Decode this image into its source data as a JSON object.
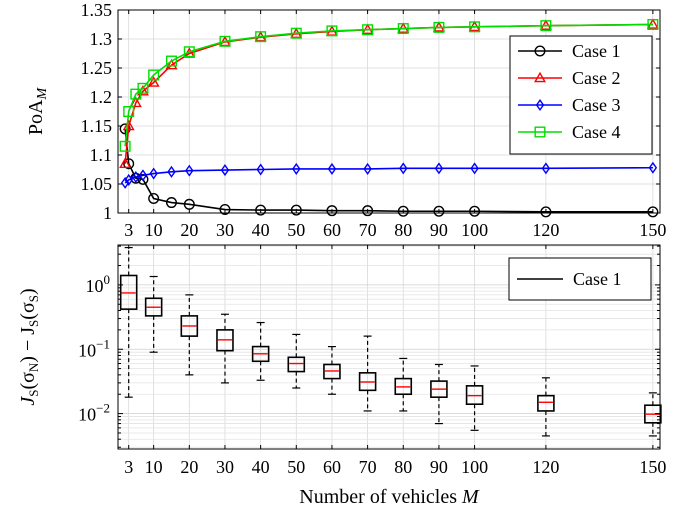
{
  "chart_data": [
    {
      "type": "line",
      "ylabel": "PoA_M",
      "ylabel_base": "PoA",
      "ylabel_sub": "M",
      "xlabel": "",
      "xlim": [
        0,
        152
      ],
      "ylim": [
        1.0,
        1.35
      ],
      "xticks": [
        3,
        10,
        20,
        30,
        40,
        50,
        60,
        70,
        80,
        90,
        100,
        120,
        150
      ],
      "yticks": [
        1,
        1.05,
        1.1,
        1.15,
        1.2,
        1.25,
        1.3,
        1.35
      ],
      "ytick_labels": [
        "1",
        "1.05",
        "1.1",
        "1.15",
        "1.2",
        "1.25",
        "1.3",
        "1.35"
      ],
      "grid": true,
      "legend_position": "right",
      "x": [
        2,
        3,
        5,
        7,
        10,
        15,
        20,
        30,
        40,
        50,
        60,
        70,
        80,
        90,
        100,
        120,
        150
      ],
      "series": [
        {
          "name": "Case 1",
          "color": "#000000",
          "marker": "circle",
          "values": [
            1.145,
            1.085,
            1.06,
            1.058,
            1.025,
            1.018,
            1.015,
            1.006,
            1.005,
            1.005,
            1.004,
            1.004,
            1.003,
            1.003,
            1.003,
            1.002,
            1.002
          ]
        },
        {
          "name": "Case 2",
          "color": "#ff0000",
          "marker": "triangle",
          "values": [
            1.085,
            1.15,
            1.19,
            1.21,
            1.225,
            1.255,
            1.275,
            1.295,
            1.303,
            1.309,
            1.313,
            1.316,
            1.318,
            1.32,
            1.321,
            1.323,
            1.325
          ]
        },
        {
          "name": "Case 3",
          "color": "#0000ff",
          "marker": "diamond",
          "values": [
            1.052,
            1.057,
            1.062,
            1.065,
            1.068,
            1.071,
            1.073,
            1.074,
            1.075,
            1.076,
            1.076,
            1.076,
            1.077,
            1.077,
            1.077,
            1.077,
            1.078
          ]
        },
        {
          "name": "Case 4",
          "color": "#00dd00",
          "marker": "square",
          "values": [
            1.115,
            1.175,
            1.205,
            1.215,
            1.238,
            1.262,
            1.278,
            1.296,
            1.304,
            1.31,
            1.314,
            1.316,
            1.318,
            1.32,
            1.321,
            1.323,
            1.325
          ]
        }
      ]
    },
    {
      "type": "box",
      "ylabel": "J_S(σ_N) − J_S(σ_S)",
      "ylabel_parts": [
        "J",
        "S",
        "(σ",
        "N",
        ") − J",
        "S",
        "(σ",
        "S",
        ")"
      ],
      "xlabel": "Number of vehicles M",
      "xlabel_text": "Number of vehicles ",
      "xlabel_var": "M",
      "xlim": [
        0,
        152
      ],
      "ylim_log10": [
        -2.55,
        0.62
      ],
      "yscale": "log",
      "yticks": [
        0.01,
        0.1,
        1
      ],
      "ytick_labels": [
        {
          "base": "10",
          "exp": "−2"
        },
        {
          "base": "10",
          "exp": "−1"
        },
        {
          "base": "10",
          "exp": "0"
        }
      ],
      "xticks": [
        3,
        10,
        20,
        30,
        40,
        50,
        60,
        70,
        80,
        90,
        100,
        120,
        150
      ],
      "grid": true,
      "legend_position": "top-right",
      "series_name": "Case 1",
      "boxes": [
        {
          "x": 3,
          "min": 0.018,
          "q1": 0.42,
          "median": 0.75,
          "q3": 1.4,
          "max": 3.8
        },
        {
          "x": 10,
          "min": 0.09,
          "q1": 0.33,
          "median": 0.45,
          "q3": 0.62,
          "max": 1.35
        },
        {
          "x": 20,
          "min": 0.04,
          "q1": 0.16,
          "median": 0.23,
          "q3": 0.33,
          "max": 0.7
        },
        {
          "x": 30,
          "min": 0.03,
          "q1": 0.095,
          "median": 0.14,
          "q3": 0.2,
          "max": 0.35
        },
        {
          "x": 40,
          "min": 0.033,
          "q1": 0.065,
          "median": 0.085,
          "q3": 0.11,
          "max": 0.26
        },
        {
          "x": 50,
          "min": 0.025,
          "q1": 0.045,
          "median": 0.06,
          "q3": 0.075,
          "max": 0.17
        },
        {
          "x": 60,
          "min": 0.02,
          "q1": 0.035,
          "median": 0.046,
          "q3": 0.058,
          "max": 0.11
        },
        {
          "x": 70,
          "min": 0.011,
          "q1": 0.023,
          "median": 0.031,
          "q3": 0.043,
          "max": 0.16
        },
        {
          "x": 80,
          "min": 0.011,
          "q1": 0.02,
          "median": 0.026,
          "q3": 0.035,
          "max": 0.072
        },
        {
          "x": 90,
          "min": 0.007,
          "q1": 0.018,
          "median": 0.024,
          "q3": 0.032,
          "max": 0.058
        },
        {
          "x": 100,
          "min": 0.0055,
          "q1": 0.014,
          "median": 0.019,
          "q3": 0.027,
          "max": 0.055
        },
        {
          "x": 120,
          "min": 0.0045,
          "q1": 0.011,
          "median": 0.015,
          "q3": 0.019,
          "max": 0.036
        },
        {
          "x": 150,
          "min": 0.0045,
          "q1": 0.0072,
          "median": 0.0098,
          "q3": 0.0135,
          "max": 0.021
        }
      ]
    }
  ]
}
